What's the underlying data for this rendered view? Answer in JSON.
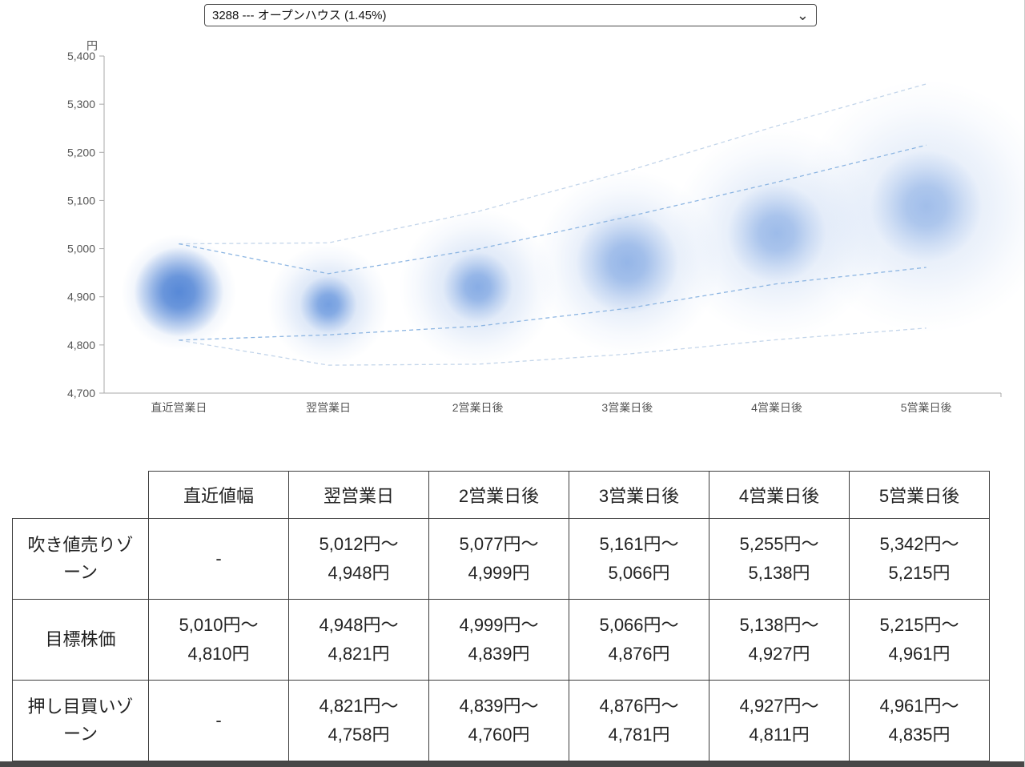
{
  "select": {
    "value": "3288 --- オープンハウス (1.45%)"
  },
  "chart_data": {
    "type": "scatter",
    "title": "",
    "xlabel": "",
    "ylabel": "円",
    "ylim": [
      4700,
      5400
    ],
    "yticks": [
      5400,
      5300,
      5200,
      5100,
      5000,
      4900,
      4800,
      4700
    ],
    "grid": false,
    "legend": "none",
    "categories": [
      "直近営業日",
      "翌営業日",
      "2営業日後",
      "3営業日後",
      "4営業日後",
      "5営業日後"
    ],
    "lines": {
      "sell_top": [
        5010,
        5012,
        5077,
        5161,
        5255,
        5342
      ],
      "target_top": [
        5010,
        4948,
        4999,
        5066,
        5138,
        5215
      ],
      "target_bottom": [
        4810,
        4821,
        4839,
        4876,
        4927,
        4961
      ],
      "buy_bottom": [
        4810,
        4758,
        4760,
        4781,
        4811,
        4835
      ]
    },
    "line_colors": {
      "outer": "#c3d5ea",
      "inner": "#8cb5e2"
    },
    "axis_color": "#aaaaaa",
    "tick_text_color": "#555555",
    "bubbles": [
      {
        "value": 4910,
        "core_r": 56,
        "halo_r": 72,
        "core_opacity": 0.92,
        "halo_opacity": 0.4,
        "color": "#4f83d5"
      },
      {
        "value": 4884,
        "core_r": 36,
        "halo_r": 76,
        "core_opacity": 0.78,
        "halo_opacity": 0.34,
        "color": "#5d8fdb"
      },
      {
        "value": 4920,
        "core_r": 44,
        "halo_r": 98,
        "core_opacity": 0.62,
        "halo_opacity": 0.3,
        "color": "#5d8fdb"
      },
      {
        "value": 4971,
        "core_r": 64,
        "halo_r": 116,
        "core_opacity": 0.52,
        "halo_opacity": 0.28,
        "color": "#5d8fdb"
      },
      {
        "value": 5032,
        "core_r": 62,
        "halo_r": 132,
        "core_opacity": 0.48,
        "halo_opacity": 0.24,
        "color": "#5d8fdb"
      },
      {
        "value": 5088,
        "core_r": 70,
        "halo_r": 158,
        "core_opacity": 0.46,
        "halo_opacity": 0.22,
        "color": "#5d8fdb"
      }
    ]
  },
  "table": {
    "header": [
      "",
      "直近値幅",
      "翌営業日",
      "2営業日後",
      "3営業日後",
      "4営業日後",
      "5営業日後"
    ],
    "rows": [
      {
        "label": "吹き値売りゾーン",
        "cells": [
          "-",
          "5,012円〜\n4,948円",
          "5,077円〜\n4,999円",
          "5,161円〜\n5,066円",
          "5,255円〜\n5,138円",
          "5,342円〜\n5,215円"
        ]
      },
      {
        "label": "目標株価",
        "cells": [
          "5,010円〜\n4,810円",
          "4,948円〜\n4,821円",
          "4,999円〜\n4,839円",
          "5,066円〜\n4,876円",
          "5,138円〜\n4,927円",
          "5,215円〜\n4,961円"
        ]
      },
      {
        "label": "押し目買いゾーン",
        "cells": [
          "-",
          "4,821円〜\n4,758円",
          "4,839円〜\n4,760円",
          "4,876円〜\n4,781円",
          "4,927円〜\n4,811円",
          "4,961円〜\n4,835円"
        ]
      }
    ]
  }
}
